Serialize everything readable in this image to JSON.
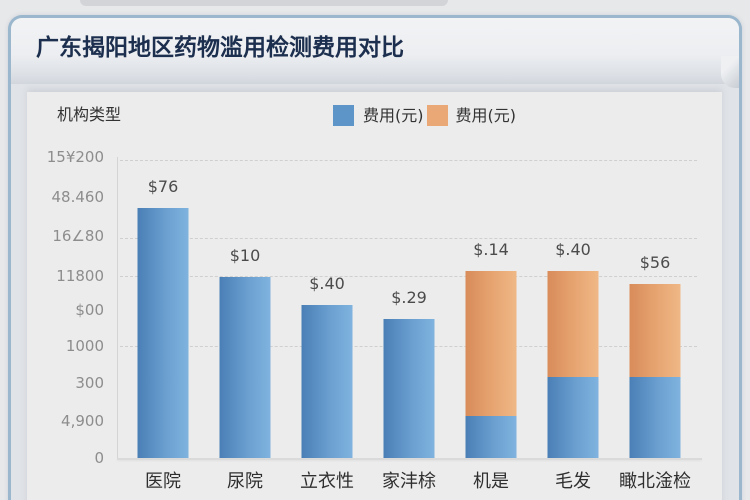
{
  "header": {
    "title": "广东揭阳地区药物滥用检测费用对比"
  },
  "chart": {
    "axis_title": "机构类型",
    "legend": [
      {
        "label": "费用(元)",
        "color": "#5d95c9"
      },
      {
        "label": "费用(元)",
        "color": "#eba877"
      }
    ]
  },
  "chart_data": {
    "type": "bar",
    "stacked": true,
    "title": "广东揭阳地区药物滥用检测费用对比",
    "xlabel": "机构类型",
    "ylabel": "",
    "categories": [
      "医院",
      "尿院",
      "立衣性",
      "家沣梌",
      "机是",
      "毛发",
      "瞰北淦检"
    ],
    "series": [
      {
        "name": "费用(元)",
        "color": "#5d95c9",
        "values": [
          83.2,
          60.3,
          51.0,
          46.3,
          13.8,
          26.9,
          26.9
        ]
      },
      {
        "name": "费用(元)",
        "color": "#eba877",
        "values": [
          0,
          0,
          0,
          0,
          48.3,
          35.2,
          30.9
        ]
      }
    ],
    "data_labels": [
      "$76",
      "$10",
      "$.40",
      "$.29",
      "$.14",
      "$.40",
      "$56"
    ],
    "y_ticks": [
      {
        "label": "15¥200",
        "pos": 100
      },
      {
        "label": "48.460",
        "pos": 86.7
      },
      {
        "label": "16∠80",
        "pos": 73.8
      },
      {
        "label": "11800",
        "pos": 60.5
      },
      {
        "label": "$00",
        "pos": 49.2
      },
      {
        "label": "1000",
        "pos": 37.2
      },
      {
        "label": "300",
        "pos": 24.9
      },
      {
        "label": "4,900",
        "pos": 12.3
      },
      {
        "label": "0",
        "pos": 0
      }
    ],
    "ylim": [
      0,
      100
    ],
    "grid": true,
    "gridlines": [
      98.7,
      72.8,
      60.0,
      37.0
    ],
    "legend_position": "top-right"
  }
}
